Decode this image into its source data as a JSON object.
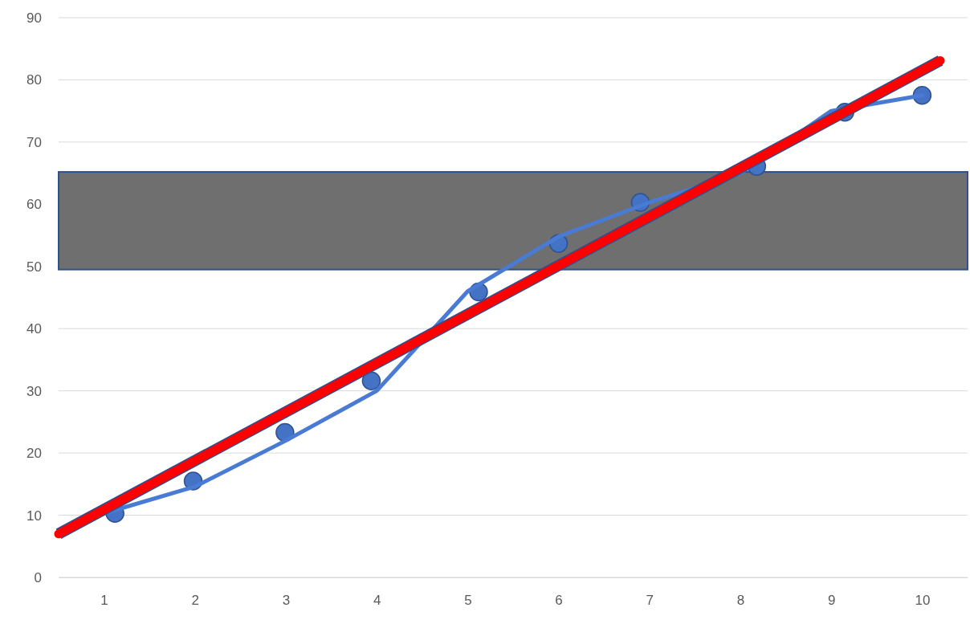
{
  "chart_data": {
    "type": "line",
    "xlim": [
      0.5,
      10.5
    ],
    "xticks": [
      1,
      2,
      3,
      4,
      5,
      6,
      7,
      8,
      9,
      10
    ],
    "ylim": [
      0,
      90
    ],
    "yticks": [
      0,
      10,
      20,
      30,
      40,
      50,
      60,
      70,
      80,
      90
    ],
    "grid": "y",
    "line_style": "solid",
    "series": [
      {
        "marker": "circle",
        "type": "scatter",
        "color": "#4472c4",
        "x": [
          1.12,
          1.98,
          2.99,
          3.94,
          5.12,
          6,
          6.9,
          8.18,
          9.15,
          10
        ],
        "values": [
          10.3,
          15.5,
          23.3,
          31.6,
          45.9,
          53.7,
          60.3,
          66.1,
          74.8,
          77.5
        ]
      },
      {
        "marker": "none",
        "color": "#4a7bd4",
        "x": [
          1,
          2,
          3,
          4,
          5,
          6,
          7,
          8,
          9,
          10
        ],
        "values": [
          10.3,
          14.6,
          22,
          30,
          46,
          54.8,
          60.3,
          65,
          75,
          77.5
        ]
      },
      {
        "marker": "none",
        "color": "#ff0000",
        "x": [
          0.5,
          10.2
        ],
        "values": [
          7,
          83.1
        ]
      }
    ],
    "bands": [
      {
        "axis": "y",
        "from": 49.5,
        "to": 65.2,
        "color": "#6f6f6f"
      }
    ]
  }
}
